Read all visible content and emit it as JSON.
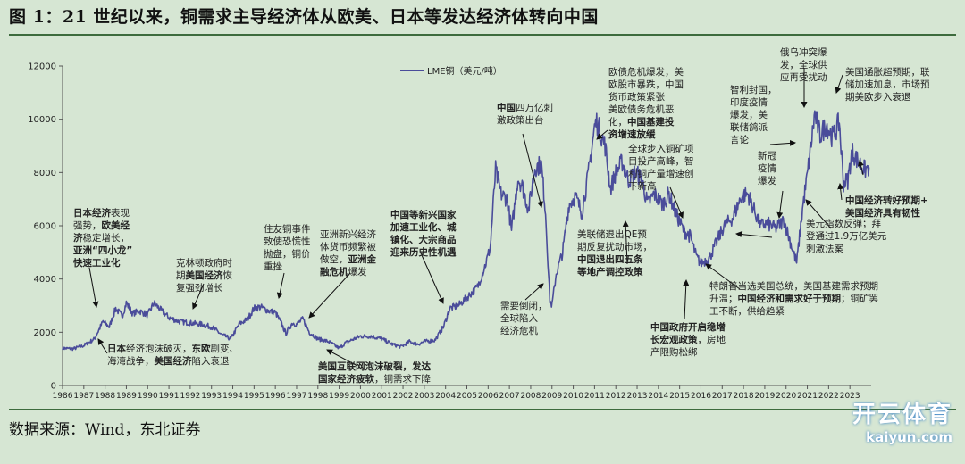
{
  "title": "图 1：21 世纪以来，铜需求主导经济体从欧美、日本等发达经济体转向中国",
  "source": "数据来源：Wind，东北证券",
  "watermark": {
    "main": "开云体育",
    "sub": "kaiyun.com"
  },
  "colors": {
    "background": "#d6e6d3",
    "series": "#4a4c9a",
    "rule": "#3d6b3d"
  },
  "chart_data": {
    "type": "line",
    "series": [
      {
        "name": "LME铜（美元/吨）"
      }
    ],
    "legend_position": "top-center",
    "grid": false,
    "ylim": [
      0,
      12000
    ],
    "yticks": [
      "0",
      "2000",
      "4000",
      "6000",
      "8000",
      "10000",
      "12000"
    ],
    "xticks": [
      "1986",
      "1987",
      "1988",
      "1989",
      "1990",
      "1991",
      "1992",
      "1993",
      "1994",
      "1995",
      "1996",
      "1997",
      "1998",
      "1999",
      "2000",
      "2001",
      "2002",
      "2003",
      "2004",
      "2005",
      "2006",
      "2007",
      "2008",
      "2009",
      "2010",
      "2011",
      "2012",
      "2013",
      "2014",
      "2015",
      "2016",
      "2017",
      "2018",
      "2019",
      "2020",
      "2021",
      "2022",
      "2023"
    ],
    "x": [
      1986.0,
      1986.5,
      1987.0,
      1987.5,
      1987.9,
      1988.2,
      1988.5,
      1988.8,
      1989.0,
      1989.3,
      1989.6,
      1990.0,
      1990.3,
      1990.6,
      1991.0,
      1991.5,
      1992.0,
      1992.5,
      1993.0,
      1993.5,
      1993.9,
      1994.3,
      1994.7,
      1995.0,
      1995.3,
      1995.7,
      1996.0,
      1996.3,
      1996.5,
      1996.8,
      1997.0,
      1997.3,
      1997.6,
      1998.0,
      1998.5,
      1999.0,
      1999.3,
      1999.7,
      2000.0,
      2000.5,
      2001.0,
      2001.5,
      2001.9,
      2002.3,
      2002.7,
      2003.0,
      2003.5,
      2003.9,
      2004.2,
      2004.6,
      2005.0,
      2005.5,
      2005.9,
      2006.1,
      2006.35,
      2006.6,
      2006.9,
      2007.1,
      2007.4,
      2007.6,
      2007.9,
      2008.2,
      2008.5,
      2008.7,
      2008.9,
      2009.0,
      2009.2,
      2009.5,
      2009.8,
      2010.1,
      2010.4,
      2010.7,
      2011.0,
      2011.1,
      2011.5,
      2011.75,
      2012.0,
      2012.3,
      2012.6,
      2012.9,
      2013.2,
      2013.5,
      2013.8,
      2014.2,
      2014.5,
      2014.8,
      2015.2,
      2015.5,
      2015.8,
      2016.0,
      2016.4,
      2016.8,
      2017.1,
      2017.5,
      2017.9,
      2018.2,
      2018.5,
      2018.8,
      2019.1,
      2019.5,
      2019.9,
      2020.2,
      2020.5,
      2020.8,
      2021.0,
      2021.35,
      2021.6,
      2021.9,
      2022.2,
      2022.5,
      2022.7,
      2022.9,
      2023.1,
      2023.4,
      2023.7,
      2023.9
    ],
    "y": [
      1400,
      1380,
      1500,
      1750,
      2400,
      2200,
      2900,
      2600,
      3100,
      2700,
      2800,
      2650,
      3100,
      2850,
      2550,
      2400,
      2350,
      2300,
      2200,
      1900,
      1750,
      2300,
      2500,
      2900,
      2950,
      2800,
      2750,
      2300,
      1950,
      2350,
      2300,
      2500,
      2000,
      1750,
      1650,
      1400,
      1600,
      1750,
      1850,
      1850,
      1750,
      1550,
      1450,
      1650,
      1550,
      1650,
      1700,
      2200,
      2900,
      3000,
      3300,
      3700,
      4600,
      5200,
      8100,
      7200,
      7000,
      5800,
      7800,
      7500,
      6600,
      8200,
      8300,
      6500,
      3200,
      3000,
      4200,
      5000,
      6800,
      7100,
      6500,
      7900,
      9700,
      9900,
      9000,
      7400,
      8000,
      8400,
      7700,
      8000,
      7800,
      6800,
      7200,
      6800,
      7200,
      6500,
      5800,
      5600,
      4800,
      4600,
      4800,
      5500,
      6000,
      6300,
      7100,
      7200,
      6600,
      6000,
      6100,
      5900,
      6200,
      5400,
      4600,
      6800,
      7900,
      10200,
      9400,
      9800,
      9300,
      9900,
      7600,
      7700,
      8800,
      8400,
      8100,
      8200
    ]
  },
  "annotations": {
    "lme_legend": "LME铜（美元/吨）",
    "a1": [
      {
        "t": "日本",
        "b": true
      },
      {
        "t": "经济",
        "b": true
      },
      {
        "t": "表现\n强势，",
        "b": false
      },
      {
        "t": "欧美经",
        "b": true
      },
      {
        "t": "\n济",
        "b": true
      },
      {
        "t": "稳定增长，\n",
        "b": false
      },
      {
        "t": "亚洲“四小龙”\n快速工业化",
        "b": true
      }
    ],
    "a2": [
      {
        "t": "日本",
        "b": true
      },
      {
        "t": "经济泡沫破灭，",
        "b": false
      },
      {
        "t": "东欧",
        "b": true
      },
      {
        "t": "剧变、\n海湾战争，",
        "b": false
      },
      {
        "t": "美国经济",
        "b": true
      },
      {
        "t": "陷入衰退",
        "b": false
      }
    ],
    "a3": [
      {
        "t": "克林顿政府时\n期",
        "b": false
      },
      {
        "t": "美国经济",
        "b": true
      },
      {
        "t": "恢\n复强劲增长",
        "b": false
      }
    ],
    "a4": [
      {
        "t": "住友铜事件\n致使恐慌性\n抛盘，铜价\n重挫",
        "b": false
      }
    ],
    "a5": [
      {
        "t": "亚洲新兴经济\n体货币频繁被\n做空，",
        "b": false
      },
      {
        "t": "亚洲金\n融危机",
        "b": true
      },
      {
        "t": "爆发",
        "b": false
      }
    ],
    "a6": [
      {
        "t": "美国互联网泡沫破裂，发达\n国家经济疲软",
        "b": true
      },
      {
        "t": "，铜需求下降",
        "b": false
      }
    ],
    "a7": [
      {
        "t": "中国等新兴国家\n加速工业化、城\n镇化、大宗商品\n迎来历史性机遇",
        "b": true
      }
    ],
    "a8": [
      {
        "t": "中国",
        "b": true
      },
      {
        "t": "四万亿刺\n激政策出台",
        "b": false
      }
    ],
    "a9": [
      {
        "t": "需要倒闭，\n全球陷入\n经济危机",
        "b": false
      }
    ],
    "a10": [
      {
        "t": "欧债危机爆发，美\n欧股市暴跌，中国\n货币政策紧张\n美欧债务危机恶\n化，",
        "b": false
      },
      {
        "t": "中国基建投\n资增速放缓",
        "b": true
      }
    ],
    "a11": [
      {
        "t": "全球步入铜矿项\n目投产高峰，智\n利铜产量增速创\n下新高",
        "b": false
      }
    ],
    "a12": [
      {
        "t": "美联储退出QE预\n期反复扰动市场，\n",
        "b": false
      },
      {
        "t": "中国退出四五条\n等地产调控政策",
        "b": true
      }
    ],
    "a13": [
      {
        "t": "中国政府开启稳增\n长宏观政策",
        "b": true
      },
      {
        "t": "，房地\n产限购松绑",
        "b": false
      }
    ],
    "a14": [
      {
        "t": "智利封国，\n印度疫情\n爆发，美\n联储鸽派\n言论",
        "b": false
      }
    ],
    "a15": [
      {
        "t": "新冠\n疫情\n爆发",
        "b": false
      }
    ],
    "a16": [
      {
        "t": "俄乌冲突爆\n发，全球供\n应再受扰动",
        "b": false
      }
    ],
    "a17": [
      {
        "t": "美国通胀超预期，联\n储加速加息，市场预\n期美欧步入衰退",
        "b": false
      }
    ],
    "a18": [
      {
        "t": "中国经济转好预期+\n美国经济具有韧性",
        "b": true
      }
    ],
    "a19": [
      {
        "t": "美元指数反弹；拜\n登通过1.9万亿美元\n刺激法案",
        "b": false
      }
    ],
    "a20": [
      {
        "t": "特朗普当选美国总统，美国基建需求预期\n升温；",
        "b": false
      },
      {
        "t": "中国经济和需求好于预期",
        "b": true
      },
      {
        "t": "；铜矿罢\n工不断，供给趋紧",
        "b": false
      }
    ]
  }
}
